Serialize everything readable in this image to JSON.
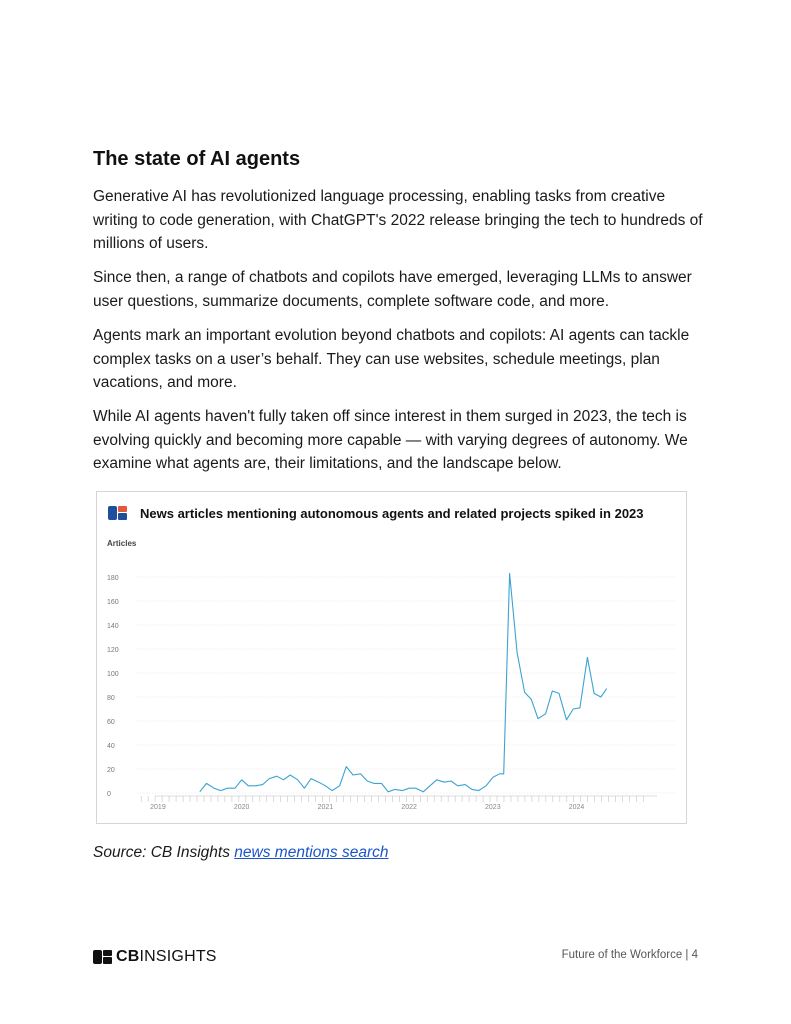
{
  "document": {
    "title": "The state of AI agents",
    "paragraphs": [
      "Generative AI has revolutionized language processing, enabling tasks from creative writing to code generation, with ChatGPT's 2022 release bringing the tech to hundreds of millions of users.",
      "Since then, a range of chatbots and copilots have emerged, leveraging LLMs to answer user questions, summarize documents, complete software code, and more.",
      "Agents mark an important evolution beyond chatbots and copilots: AI agents can tackle complex tasks on a user’s behalf. They can use websites, schedule meetings, plan vacations, and more.",
      "While AI agents haven't fully taken off since interest in them surged in 2023, the tech is evolving quickly and becoming more capable — with varying degrees of autonomy. We examine what agents are, their limitations, and the landscape below."
    ],
    "source_prefix": "Source: CB Insights ",
    "source_link": "news mentions search"
  },
  "footer": {
    "logo_bold": "CB",
    "logo_light": "INSIGHTS",
    "page_label": "Future of the Workforce | 4"
  },
  "colors": {
    "line": "#3ba3d0",
    "logo_blue": "#1f4e9c",
    "logo_red": "#e05a3a",
    "link": "#1a56c8"
  },
  "chart_data": {
    "type": "line",
    "title": "News articles mentioning autonomous agents and related projects spiked in 2023",
    "ylabel": "Articles",
    "xlabel": "",
    "ylim": [
      0,
      180
    ],
    "yticks": [
      0,
      20,
      40,
      60,
      80,
      100,
      120,
      140,
      160,
      180
    ],
    "xlim": [
      2018.75,
      2025.2
    ],
    "xtick_labels": [
      "2019",
      "2020",
      "2021",
      "2022",
      "2023",
      "2024"
    ],
    "grid": true,
    "series": [
      {
        "name": "",
        "x": [
          2019.5,
          2019.58,
          2019.67,
          2019.75,
          2019.83,
          2019.92,
          2020.0,
          2020.08,
          2020.17,
          2020.25,
          2020.33,
          2020.42,
          2020.5,
          2020.58,
          2020.67,
          2020.75,
          2020.83,
          2020.92,
          2021.0,
          2021.08,
          2021.17,
          2021.25,
          2021.33,
          2021.42,
          2021.5,
          2021.58,
          2021.67,
          2021.75,
          2021.83,
          2021.92,
          2022.0,
          2022.08,
          2022.17,
          2022.25,
          2022.33,
          2022.42,
          2022.5,
          2022.58,
          2022.67,
          2022.75,
          2022.83,
          2022.92,
          2023.0,
          2023.08,
          2023.13,
          2023.2,
          2023.29,
          2023.38,
          2023.46,
          2023.54,
          2023.63,
          2023.71,
          2023.79,
          2023.88,
          2023.96,
          2024.04,
          2024.13,
          2024.21,
          2024.29
        ],
        "y": [
          1,
          8,
          4,
          2,
          4,
          4,
          11,
          6,
          6,
          7,
          12,
          14,
          11,
          15,
          11,
          4,
          12,
          9,
          6,
          2,
          6,
          22,
          15,
          16,
          10,
          8,
          8,
          1,
          3,
          2,
          4,
          4,
          1,
          6,
          11,
          9,
          10,
          6,
          7,
          3,
          2,
          6,
          13,
          16,
          16,
          183,
          117,
          84,
          78,
          62,
          66,
          85,
          83,
          61,
          70,
          71,
          113,
          83,
          80
        ]
      }
    ],
    "series_tail": {
      "x": [
        2024.36
      ],
      "y": [
        87
      ]
    }
  }
}
